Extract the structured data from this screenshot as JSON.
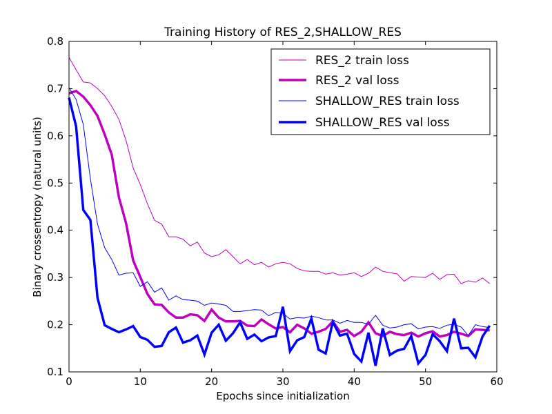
{
  "chart_data": {
    "type": "line",
    "title": "Training History of RES_2,SHALLOW_RES",
    "xlabel": "Epochs since initialization",
    "ylabel": "Binary crossentropy (natural units)",
    "xlim": [
      0,
      60
    ],
    "ylim": [
      0.1,
      0.8
    ],
    "xticks": [
      0,
      10,
      20,
      30,
      40,
      50,
      60
    ],
    "yticks": [
      0.1,
      0.2,
      0.3,
      0.4,
      0.5,
      0.6,
      0.7,
      0.8
    ],
    "xtick_labels": [
      "0",
      "10",
      "20",
      "30",
      "40",
      "50",
      "60"
    ],
    "ytick_labels": [
      "0.1",
      "0.2",
      "0.3",
      "0.4",
      "0.5",
      "0.6",
      "0.7",
      "0.8"
    ],
    "grid": false,
    "legend_position": "top-right",
    "x": [
      0,
      1,
      2,
      3,
      4,
      5,
      6,
      7,
      8,
      9,
      10,
      11,
      12,
      13,
      14,
      15,
      16,
      17,
      18,
      19,
      20,
      21,
      22,
      23,
      24,
      25,
      26,
      27,
      28,
      29,
      30,
      31,
      32,
      33,
      34,
      35,
      36,
      37,
      38,
      39,
      40,
      41,
      42,
      43,
      44,
      45,
      46,
      47,
      48,
      49,
      50,
      51,
      52,
      53,
      54,
      55,
      56,
      57,
      58,
      59
    ],
    "series": [
      {
        "name": "RES_2 train loss",
        "color": "#bf00bf",
        "width": 1,
        "values": [
          0.766,
          0.74,
          0.714,
          0.712,
          0.7,
          0.685,
          0.662,
          0.635,
          0.59,
          0.532,
          0.497,
          0.456,
          0.421,
          0.413,
          0.386,
          0.386,
          0.381,
          0.367,
          0.375,
          0.352,
          0.344,
          0.348,
          0.359,
          0.344,
          0.329,
          0.338,
          0.327,
          0.332,
          0.322,
          0.329,
          0.332,
          0.329,
          0.319,
          0.314,
          0.313,
          0.313,
          0.307,
          0.31,
          0.305,
          0.307,
          0.31,
          0.302,
          0.309,
          0.322,
          0.313,
          0.31,
          0.308,
          0.292,
          0.302,
          0.301,
          0.3,
          0.309,
          0.296,
          0.306,
          0.307,
          0.287,
          0.293,
          0.29,
          0.299,
          0.287
        ]
      },
      {
        "name": "RES_2 val loss",
        "color": "#bf00bf",
        "width": 3.5,
        "values": [
          0.69,
          0.695,
          0.683,
          0.665,
          0.642,
          0.603,
          0.56,
          0.47,
          0.415,
          0.336,
          0.301,
          0.265,
          0.243,
          0.242,
          0.226,
          0.215,
          0.215,
          0.222,
          0.22,
          0.208,
          0.232,
          0.215,
          0.207,
          0.207,
          0.208,
          0.198,
          0.197,
          0.211,
          0.201,
          0.192,
          0.195,
          0.184,
          0.2,
          0.192,
          0.181,
          0.185,
          0.191,
          0.207,
          0.185,
          0.189,
          0.176,
          0.185,
          0.205,
          0.182,
          0.176,
          0.185,
          0.18,
          0.178,
          0.183,
          0.175,
          0.182,
          0.186,
          0.175,
          0.178,
          0.185,
          0.181,
          0.176,
          0.19,
          0.189,
          0.188
        ]
      },
      {
        "name": "SHALLOW_RES train loss",
        "color": "#0000ff",
        "width": 1,
        "values": [
          0.702,
          0.677,
          0.624,
          0.509,
          0.413,
          0.363,
          0.338,
          0.305,
          0.309,
          0.31,
          0.281,
          0.291,
          0.269,
          0.278,
          0.252,
          0.261,
          0.253,
          0.252,
          0.25,
          0.241,
          0.246,
          0.244,
          0.241,
          0.228,
          0.228,
          0.23,
          0.232,
          0.231,
          0.219,
          0.226,
          0.224,
          0.212,
          0.215,
          0.214,
          0.218,
          0.215,
          0.21,
          0.21,
          0.203,
          0.209,
          0.205,
          0.205,
          0.201,
          0.22,
          0.199,
          0.193,
          0.195,
          0.2,
          0.202,
          0.191,
          0.195,
          0.196,
          0.192,
          0.199,
          0.201,
          0.195,
          0.177,
          0.2,
          0.196,
          0.194
        ]
      },
      {
        "name": "SHALLOW_RES val loss",
        "color": "#0000ff",
        "width": 3.5,
        "values": [
          0.681,
          0.62,
          0.443,
          0.422,
          0.257,
          0.199,
          0.191,
          0.184,
          0.19,
          0.197,
          0.174,
          0.168,
          0.153,
          0.155,
          0.184,
          0.194,
          0.162,
          0.167,
          0.177,
          0.137,
          0.183,
          0.2,
          0.166,
          0.182,
          0.205,
          0.17,
          0.179,
          0.165,
          0.173,
          0.176,
          0.238,
          0.144,
          0.167,
          0.174,
          0.213,
          0.147,
          0.139,
          0.206,
          0.177,
          0.181,
          0.138,
          0.122,
          0.183,
          0.113,
          0.192,
          0.136,
          0.145,
          0.149,
          0.176,
          0.118,
          0.136,
          0.18,
          0.165,
          0.144,
          0.213,
          0.15,
          0.151,
          0.131,
          0.175,
          0.198
        ]
      }
    ]
  }
}
